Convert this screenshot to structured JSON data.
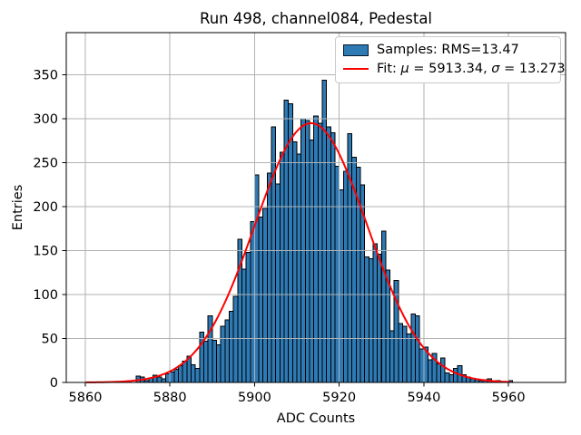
{
  "chart_data": {
    "type": "bar",
    "subtype": "histogram-with-gaussian-fit",
    "title": "Run 498, channel084, Pedestal",
    "xlabel": "ADC Counts",
    "ylabel": "Entries",
    "xlim": [
      5855.5,
      5973.5
    ],
    "ylim": [
      0,
      398
    ],
    "xticks": [
      5860,
      5880,
      5900,
      5920,
      5940,
      5960
    ],
    "yticks": [
      0,
      50,
      100,
      150,
      200,
      250,
      300,
      350
    ],
    "grid": true,
    "grid_color": "#b2b2b2",
    "bar_color": "#2e7ab5",
    "bar_edge_color": "#000000",
    "fit_color": "#ff0000",
    "bins": {
      "start": 5872,
      "width": 1,
      "counts": [
        7,
        6,
        2,
        5,
        8,
        6,
        4,
        10,
        12,
        15,
        19,
        24,
        30,
        20,
        16,
        57,
        47,
        76,
        48,
        43,
        64,
        71,
        81,
        98,
        163,
        129,
        148,
        183,
        236,
        188,
        198,
        238,
        291,
        226,
        262,
        321,
        317,
        274,
        260,
        300,
        298,
        276,
        303,
        295,
        344,
        291,
        284,
        246,
        219,
        240,
        283,
        256,
        245,
        225,
        143,
        141,
        158,
        146,
        172,
        128,
        59,
        116,
        67,
        64,
        55,
        78,
        76,
        38,
        40,
        26,
        33,
        21,
        28,
        11,
        9,
        16,
        19,
        9,
        6,
        4,
        3,
        2,
        3,
        4,
        1,
        2,
        1,
        0,
        2
      ]
    },
    "fit": {
      "mu": 5913.34,
      "sigma": 13.273,
      "peak": 295,
      "x_start": 5860.3,
      "x_end": 5960.5
    },
    "stats": {
      "rms": "13.47",
      "mu_label": "5913.34",
      "sigma_label": "13.273"
    },
    "legend": {
      "position": "upper right",
      "entries": [
        {
          "swatch": "patch",
          "label": "Samples: RMS=13.47"
        },
        {
          "swatch": "line",
          "label": "Fit: μ = 5913.34, σ = 13.273"
        }
      ]
    }
  }
}
